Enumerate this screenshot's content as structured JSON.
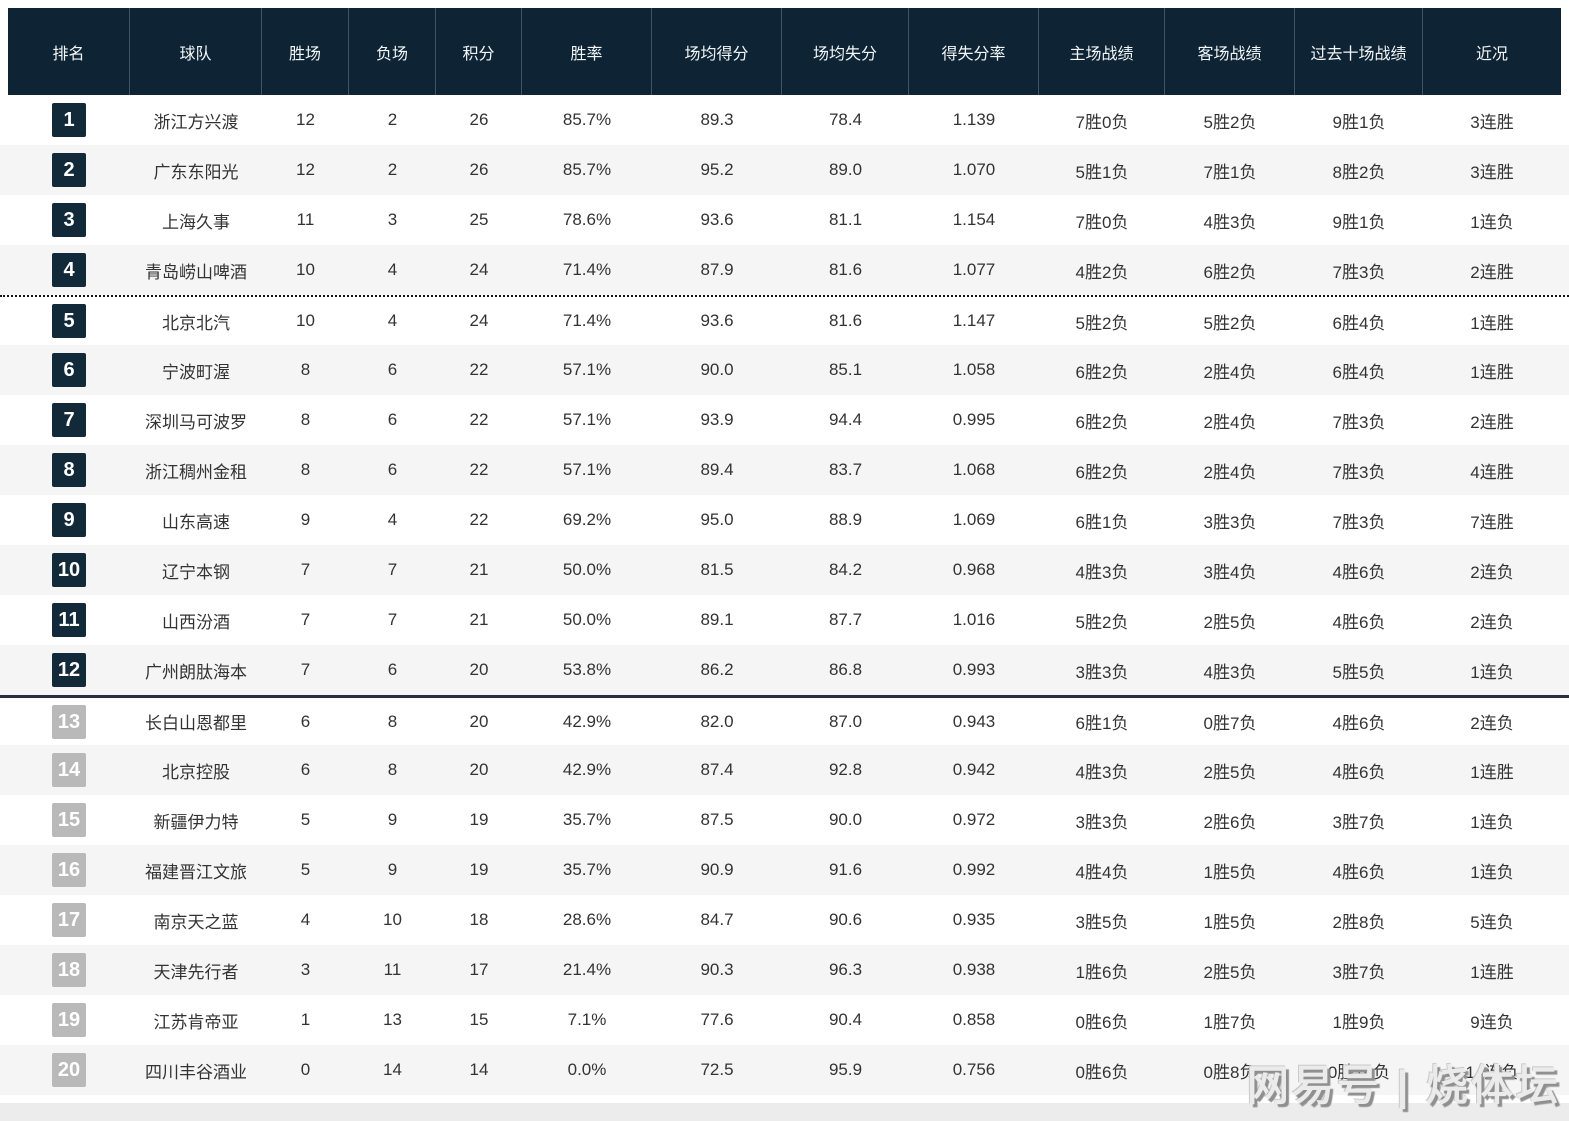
{
  "table": {
    "columns": [
      {
        "key": "rank",
        "label": "排名"
      },
      {
        "key": "team",
        "label": "球队"
      },
      {
        "key": "wins",
        "label": "胜场"
      },
      {
        "key": "losses",
        "label": "负场"
      },
      {
        "key": "points",
        "label": "积分"
      },
      {
        "key": "win_rate",
        "label": "胜率"
      },
      {
        "key": "avg_scored",
        "label": "场均得分"
      },
      {
        "key": "avg_conceded",
        "label": "场均失分"
      },
      {
        "key": "ratio",
        "label": "得失分率"
      },
      {
        "key": "home",
        "label": "主场战绩"
      },
      {
        "key": "away",
        "label": "客场战绩"
      },
      {
        "key": "last10",
        "label": "过去十场战绩"
      },
      {
        "key": "streak",
        "label": "近况"
      }
    ],
    "rows": [
      {
        "rank": "1",
        "team": "浙江方兴渡",
        "wins": "12",
        "losses": "2",
        "points": "26",
        "win_rate": "85.7%",
        "avg_scored": "89.3",
        "avg_conceded": "78.4",
        "ratio": "1.139",
        "home": "7胜0负",
        "away": "5胜2负",
        "last10": "9胜1负",
        "streak": "3连胜"
      },
      {
        "rank": "2",
        "team": "广东东阳光",
        "wins": "12",
        "losses": "2",
        "points": "26",
        "win_rate": "85.7%",
        "avg_scored": "95.2",
        "avg_conceded": "89.0",
        "ratio": "1.070",
        "home": "5胜1负",
        "away": "7胜1负",
        "last10": "8胜2负",
        "streak": "3连胜"
      },
      {
        "rank": "3",
        "team": "上海久事",
        "wins": "11",
        "losses": "3",
        "points": "25",
        "win_rate": "78.6%",
        "avg_scored": "93.6",
        "avg_conceded": "81.1",
        "ratio": "1.154",
        "home": "7胜0负",
        "away": "4胜3负",
        "last10": "9胜1负",
        "streak": "1连负"
      },
      {
        "rank": "4",
        "team": "青岛崂山啤酒",
        "wins": "10",
        "losses": "4",
        "points": "24",
        "win_rate": "71.4%",
        "avg_scored": "87.9",
        "avg_conceded": "81.6",
        "ratio": "1.077",
        "home": "4胜2负",
        "away": "6胜2负",
        "last10": "7胜3负",
        "streak": "2连胜"
      },
      {
        "rank": "5",
        "team": "北京北汽",
        "wins": "10",
        "losses": "4",
        "points": "24",
        "win_rate": "71.4%",
        "avg_scored": "93.6",
        "avg_conceded": "81.6",
        "ratio": "1.147",
        "home": "5胜2负",
        "away": "5胜2负",
        "last10": "6胜4负",
        "streak": "1连胜"
      },
      {
        "rank": "6",
        "team": "宁波町渥",
        "wins": "8",
        "losses": "6",
        "points": "22",
        "win_rate": "57.1%",
        "avg_scored": "90.0",
        "avg_conceded": "85.1",
        "ratio": "1.058",
        "home": "6胜2负",
        "away": "2胜4负",
        "last10": "6胜4负",
        "streak": "1连胜"
      },
      {
        "rank": "7",
        "team": "深圳马可波罗",
        "wins": "8",
        "losses": "6",
        "points": "22",
        "win_rate": "57.1%",
        "avg_scored": "93.9",
        "avg_conceded": "94.4",
        "ratio": "0.995",
        "home": "6胜2负",
        "away": "2胜4负",
        "last10": "7胜3负",
        "streak": "2连胜"
      },
      {
        "rank": "8",
        "team": "浙江稠州金租",
        "wins": "8",
        "losses": "6",
        "points": "22",
        "win_rate": "57.1%",
        "avg_scored": "89.4",
        "avg_conceded": "83.7",
        "ratio": "1.068",
        "home": "6胜2负",
        "away": "2胜4负",
        "last10": "7胜3负",
        "streak": "4连胜"
      },
      {
        "rank": "9",
        "team": "山东高速",
        "wins": "9",
        "losses": "4",
        "points": "22",
        "win_rate": "69.2%",
        "avg_scored": "95.0",
        "avg_conceded": "88.9",
        "ratio": "1.069",
        "home": "6胜1负",
        "away": "3胜3负",
        "last10": "7胜3负",
        "streak": "7连胜"
      },
      {
        "rank": "10",
        "team": "辽宁本钢",
        "wins": "7",
        "losses": "7",
        "points": "21",
        "win_rate": "50.0%",
        "avg_scored": "81.5",
        "avg_conceded": "84.2",
        "ratio": "0.968",
        "home": "4胜3负",
        "away": "3胜4负",
        "last10": "4胜6负",
        "streak": "2连负"
      },
      {
        "rank": "11",
        "team": "山西汾酒",
        "wins": "7",
        "losses": "7",
        "points": "21",
        "win_rate": "50.0%",
        "avg_scored": "89.1",
        "avg_conceded": "87.7",
        "ratio": "1.016",
        "home": "5胜2负",
        "away": "2胜5负",
        "last10": "4胜6负",
        "streak": "2连负"
      },
      {
        "rank": "12",
        "team": "广州朗肽海本",
        "wins": "7",
        "losses": "6",
        "points": "20",
        "win_rate": "53.8%",
        "avg_scored": "86.2",
        "avg_conceded": "86.8",
        "ratio": "0.993",
        "home": "3胜3负",
        "away": "4胜3负",
        "last10": "5胜5负",
        "streak": "1连负"
      },
      {
        "rank": "13",
        "team": "长白山恩都里",
        "wins": "6",
        "losses": "8",
        "points": "20",
        "win_rate": "42.9%",
        "avg_scored": "82.0",
        "avg_conceded": "87.0",
        "ratio": "0.943",
        "home": "6胜1负",
        "away": "0胜7负",
        "last10": "4胜6负",
        "streak": "2连负"
      },
      {
        "rank": "14",
        "team": "北京控股",
        "wins": "6",
        "losses": "8",
        "points": "20",
        "win_rate": "42.9%",
        "avg_scored": "87.4",
        "avg_conceded": "92.8",
        "ratio": "0.942",
        "home": "4胜3负",
        "away": "2胜5负",
        "last10": "4胜6负",
        "streak": "1连胜"
      },
      {
        "rank": "15",
        "team": "新疆伊力特",
        "wins": "5",
        "losses": "9",
        "points": "19",
        "win_rate": "35.7%",
        "avg_scored": "87.5",
        "avg_conceded": "90.0",
        "ratio": "0.972",
        "home": "3胜3负",
        "away": "2胜6负",
        "last10": "3胜7负",
        "streak": "1连负"
      },
      {
        "rank": "16",
        "team": "福建晋江文旅",
        "wins": "5",
        "losses": "9",
        "points": "19",
        "win_rate": "35.7%",
        "avg_scored": "90.9",
        "avg_conceded": "91.6",
        "ratio": "0.992",
        "home": "4胜4负",
        "away": "1胜5负",
        "last10": "4胜6负",
        "streak": "1连负"
      },
      {
        "rank": "17",
        "team": "南京天之蓝",
        "wins": "4",
        "losses": "10",
        "points": "18",
        "win_rate": "28.6%",
        "avg_scored": "84.7",
        "avg_conceded": "90.6",
        "ratio": "0.935",
        "home": "3胜5负",
        "away": "1胜5负",
        "last10": "2胜8负",
        "streak": "5连负"
      },
      {
        "rank": "18",
        "team": "天津先行者",
        "wins": "3",
        "losses": "11",
        "points": "17",
        "win_rate": "21.4%",
        "avg_scored": "90.3",
        "avg_conceded": "96.3",
        "ratio": "0.938",
        "home": "1胜6负",
        "away": "2胜5负",
        "last10": "3胜7负",
        "streak": "1连胜"
      },
      {
        "rank": "19",
        "team": "江苏肯帝亚",
        "wins": "1",
        "losses": "13",
        "points": "15",
        "win_rate": "7.1%",
        "avg_scored": "77.6",
        "avg_conceded": "90.4",
        "ratio": "0.858",
        "home": "0胜6负",
        "away": "1胜7负",
        "last10": "1胜9负",
        "streak": "9连负"
      },
      {
        "rank": "20",
        "team": "四川丰谷酒业",
        "wins": "0",
        "losses": "14",
        "points": "14",
        "win_rate": "0.0%",
        "avg_scored": "72.5",
        "avg_conceded": "95.9",
        "ratio": "0.756",
        "home": "0胜6负",
        "away": "0胜8负",
        "last10": "0胜10负",
        "streak": "14连负"
      }
    ],
    "dotted_separator_after_rank": 4,
    "solid_separator_after_rank": 12
  },
  "watermark": {
    "text": "网易号 | 烧体坛"
  },
  "colors": {
    "header_bg": "#0e2434",
    "header_text": "#f2f6f9",
    "badge_top": "#12293a",
    "badge_bottom": "#b9b9b9",
    "row_alt": "#f5f5f5",
    "text": "#333333",
    "separator_dotted": "#141414",
    "separator_solid": "#28303c",
    "footer_strip": "#ececec"
  }
}
